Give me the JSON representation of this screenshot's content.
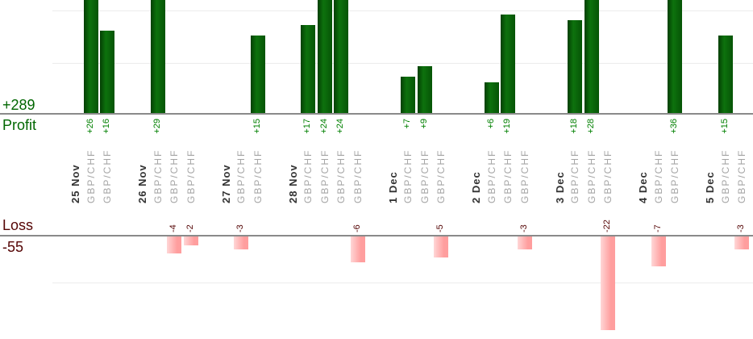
{
  "chart_data": {
    "type": "bar",
    "orientation": "vertical",
    "legend": "none",
    "grid": "horizontal-light",
    "profit": {
      "label": "Profit",
      "total": "+289"
    },
    "loss": {
      "label": "Loss",
      "total": "-55"
    },
    "groups": [
      {
        "date": "25 Nov",
        "trades": [
          {
            "symbol": "GBP/CHF",
            "value": 26,
            "label": "+26"
          },
          {
            "symbol": "GBP/CHF",
            "value": 16,
            "label": "+16"
          }
        ]
      },
      {
        "date": "26 Nov",
        "trades": [
          {
            "symbol": "GBP/CHF",
            "value": 29,
            "label": "+29"
          },
          {
            "symbol": "GBP/CHF",
            "value": -4,
            "label": "-4"
          },
          {
            "symbol": "GBP/CHF",
            "value": -2,
            "label": "-2"
          }
        ]
      },
      {
        "date": "27 Nov",
        "trades": [
          {
            "symbol": "GBP/CHF",
            "value": -3,
            "label": "-3"
          },
          {
            "symbol": "GBP/CHF",
            "value": 15,
            "label": "+15"
          }
        ]
      },
      {
        "date": "28 Nov",
        "trades": [
          {
            "symbol": "GBP/CHF",
            "value": 17,
            "label": "+17"
          },
          {
            "symbol": "GBP/CHF",
            "value": 24,
            "label": "+24"
          },
          {
            "symbol": "GBP/CHF",
            "value": 24,
            "label": "+24"
          },
          {
            "symbol": "GBP/CHF",
            "value": -6,
            "label": "-6"
          }
        ]
      },
      {
        "date": "1 Dec",
        "trades": [
          {
            "symbol": "GBP/CHF",
            "value": 7,
            "label": "+7"
          },
          {
            "symbol": "GBP/CHF",
            "value": 9,
            "label": "+9"
          },
          {
            "symbol": "GBP/CHF",
            "value": -5,
            "label": "-5"
          }
        ]
      },
      {
        "date": "2 Dec",
        "trades": [
          {
            "symbol": "GBP/CHF",
            "value": 6,
            "label": "+6"
          },
          {
            "symbol": "GBP/CHF",
            "value": 19,
            "label": "+19"
          },
          {
            "symbol": "GBP/CHF",
            "value": -3,
            "label": "-3"
          }
        ]
      },
      {
        "date": "3 Dec",
        "trades": [
          {
            "symbol": "GBP/CHF",
            "value": 18,
            "label": "+18"
          },
          {
            "symbol": "GBP/CHF",
            "value": 28,
            "label": "+28"
          },
          {
            "symbol": "GBP/CHF",
            "value": -22,
            "label": "-22"
          }
        ]
      },
      {
        "date": "4 Dec",
        "trades": [
          {
            "symbol": "GBP/CHF",
            "value": -7,
            "label": "-7"
          },
          {
            "symbol": "GBP/CHF",
            "value": 36,
            "label": "+36"
          }
        ]
      },
      {
        "date": "5 Dec",
        "trades": [
          {
            "symbol": "GBP/CHF",
            "value": 15,
            "label": "+15"
          },
          {
            "symbol": "GBP/CHF",
            "value": -3,
            "label": "-3"
          }
        ]
      }
    ],
    "colors": {
      "profit_text": "#006600",
      "profit_value_text": "#008000",
      "profit_bar_dark": "#043f04",
      "profit_bar_light": "#0d720d",
      "profit_bar_mid": "#065406",
      "loss_text": "#550505",
      "loss_value_text": "#550505",
      "loss_bar_light": "#ffd6d6",
      "loss_bar": "#ff9e9e",
      "date_text": "#333333",
      "symbol_text": "#a4a4a4",
      "axis_line": "#8a8a8a",
      "gridline": "#ececec"
    }
  }
}
